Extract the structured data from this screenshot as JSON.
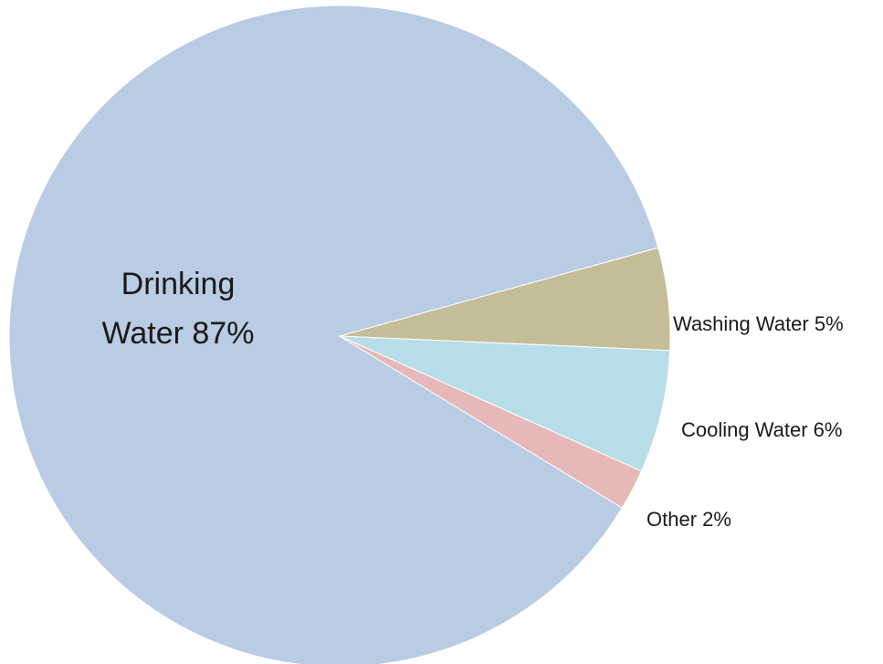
{
  "chart_data": {
    "type": "pie",
    "slices": [
      {
        "label": "Drinking Water 87%",
        "value": 87,
        "color": "#b9cce4"
      },
      {
        "label": "Washing Water 5%",
        "value": 5,
        "color": "#c4bd97"
      },
      {
        "label": "Cooling Water 6%",
        "value": 6,
        "color": "#b7dde8"
      },
      {
        "label": "Other 2%",
        "value": 2,
        "color": "#e6b9b8"
      }
    ],
    "legend": "none",
    "labels": "on-chart"
  }
}
